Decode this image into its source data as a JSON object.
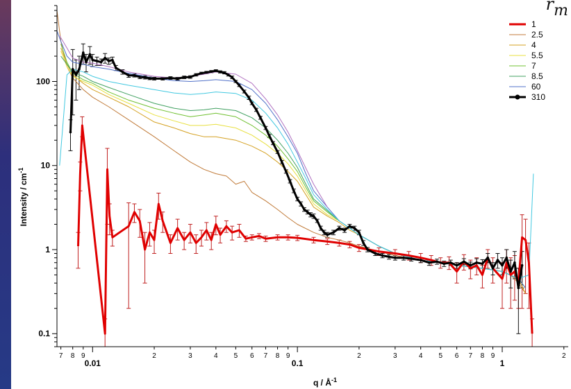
{
  "chart_data": {
    "type": "line",
    "title": "",
    "corner_label": {
      "main": "r",
      "sub": "m"
    },
    "xlabel": "q / Å",
    "xlabel_sup": "-1",
    "ylabel": "Intensity / cm",
    "ylabel_sup": "-1",
    "xscale": "log",
    "yscale": "log",
    "xlim": [
      0.0067,
      2.1
    ],
    "ylim": [
      0.07,
      800
    ],
    "grid": false,
    "legend_position": "top-right",
    "x_major_ticks": [
      {
        "value": 0.01,
        "label": "0.01"
      },
      {
        "value": 0.1,
        "label": "0.1"
      },
      {
        "value": 1,
        "label": "1"
      }
    ],
    "x_minor_ticks": [
      {
        "value": 0.007,
        "label": "7"
      },
      {
        "value": 0.008,
        "label": "8"
      },
      {
        "value": 0.009,
        "label": "9"
      },
      {
        "value": 0.02,
        "label": "2"
      },
      {
        "value": 0.03,
        "label": "3"
      },
      {
        "value": 0.04,
        "label": "4"
      },
      {
        "value": 0.05,
        "label": "5"
      },
      {
        "value": 0.06,
        "label": "6"
      },
      {
        "value": 0.07,
        "label": "7"
      },
      {
        "value": 0.08,
        "label": "8"
      },
      {
        "value": 0.09,
        "label": "9"
      },
      {
        "value": 0.2,
        "label": "2"
      },
      {
        "value": 0.3,
        "label": "3"
      },
      {
        "value": 0.4,
        "label": "4"
      },
      {
        "value": 0.5,
        "label": "5"
      },
      {
        "value": 0.6,
        "label": "6"
      },
      {
        "value": 0.7,
        "label": "7"
      },
      {
        "value": 0.8,
        "label": "8"
      },
      {
        "value": 0.9,
        "label": "9"
      },
      {
        "value": 2,
        "label": "2"
      }
    ],
    "y_major_ticks": [
      {
        "value": 0.1,
        "label": "0.1"
      },
      {
        "value": 1,
        "label": "1"
      },
      {
        "value": 10,
        "label": "10"
      },
      {
        "value": 100,
        "label": "100"
      }
    ],
    "series": [
      {
        "name": "1",
        "color": "#e00000",
        "width": 3,
        "marker": false,
        "errorbars": true,
        "x": [
          0.0085,
          0.0087,
          0.0089,
          0.0115,
          0.0118,
          0.0121,
          0.0125,
          0.015,
          0.016,
          0.017,
          0.018,
          0.019,
          0.02,
          0.021,
          0.022,
          0.024,
          0.026,
          0.028,
          0.03,
          0.032,
          0.034,
          0.036,
          0.038,
          0.04,
          0.042,
          0.045,
          0.048,
          0.052,
          0.056,
          0.06,
          0.065,
          0.07,
          0.08,
          0.09,
          0.1,
          0.12,
          0.14,
          0.16,
          0.18,
          0.2,
          0.25,
          0.3,
          0.35,
          0.4,
          0.45,
          0.5,
          0.55,
          0.6,
          0.65,
          0.7,
          0.75,
          0.8,
          0.85,
          0.9,
          1.0,
          1.05,
          1.1,
          1.15,
          1.2,
          1.25,
          1.3,
          1.35,
          1.4
        ],
        "y": [
          1.1,
          8,
          30,
          0.1,
          9,
          2.5,
          1.4,
          1.9,
          2.8,
          2.2,
          1.0,
          1.6,
          1.3,
          3.5,
          2.2,
          1.2,
          1.8,
          1.3,
          1.6,
          1.2,
          1.4,
          1.7,
          1.3,
          2.0,
          1.5,
          1.9,
          1.6,
          1.7,
          1.35,
          1.4,
          1.45,
          1.35,
          1.4,
          1.4,
          1.38,
          1.3,
          1.25,
          1.2,
          1.15,
          1.05,
          0.95,
          0.9,
          0.85,
          0.8,
          0.75,
          0.7,
          0.7,
          0.55,
          0.72,
          0.6,
          0.65,
          0.5,
          0.8,
          0.6,
          0.45,
          0.7,
          0.5,
          0.55,
          0.4,
          1.4,
          1.3,
          0.7,
          0.1
        ],
        "err": [
          0.5,
          3,
          8,
          0.05,
          7,
          1,
          0.3,
          1.7,
          0.7,
          0.8,
          0.6,
          0.5,
          0.4,
          1.2,
          0.6,
          0.3,
          0.5,
          0.3,
          0.4,
          0.3,
          0.3,
          0.4,
          0.3,
          0.5,
          0.3,
          0.3,
          0.3,
          0.3,
          0.1,
          0.1,
          0.1,
          0.1,
          0.1,
          0.1,
          0.1,
          0.1,
          0.1,
          0.1,
          0.1,
          0.1,
          0.1,
          0.1,
          0.1,
          0.1,
          0.1,
          0.1,
          0.12,
          0.15,
          0.15,
          0.15,
          0.15,
          0.15,
          0.2,
          0.2,
          0.25,
          0.3,
          0.3,
          0.3,
          0.2,
          1.2,
          1.0,
          0.5,
          0.05
        ]
      },
      {
        "name": "2.5",
        "color": "#c07a38",
        "width": 1,
        "marker": false,
        "errorbars": false,
        "x": [
          0.0067,
          0.007,
          0.0075,
          0.008,
          0.009,
          0.01,
          0.012,
          0.015,
          0.02,
          0.025,
          0.03,
          0.035,
          0.04,
          0.045,
          0.05,
          0.055,
          0.06,
          0.07,
          0.08,
          0.09,
          0.1,
          0.12,
          0.14,
          0.16,
          0.18,
          0.2,
          0.25,
          0.3,
          0.4,
          0.5,
          0.6,
          0.8,
          1.0,
          1.1,
          1.2,
          1.3
        ],
        "y": [
          700,
          300,
          150,
          110,
          80,
          65,
          50,
          35,
          22,
          15,
          11,
          9,
          8,
          7.5,
          6.0,
          6.5,
          4.8,
          3.8,
          3.0,
          2.4,
          2.0,
          1.6,
          1.4,
          1.3,
          1.2,
          1.1,
          0.95,
          0.85,
          0.75,
          0.7,
          0.65,
          0.6,
          0.55,
          0.5,
          0.4,
          0.3
        ]
      },
      {
        "name": "4",
        "color": "#d4a020",
        "width": 1,
        "marker": false,
        "errorbars": false,
        "x": [
          0.007,
          0.0075,
          0.008,
          0.009,
          0.01,
          0.012,
          0.015,
          0.02,
          0.025,
          0.03,
          0.035,
          0.04,
          0.05,
          0.06,
          0.07,
          0.08,
          0.09,
          0.1,
          0.11,
          0.12,
          0.14,
          0.16,
          0.18,
          0.2,
          0.25,
          0.3,
          0.4,
          0.5,
          0.6,
          0.8,
          1.0,
          1.2,
          1.3
        ],
        "y": [
          250,
          160,
          120,
          95,
          80,
          65,
          50,
          33,
          28,
          24,
          22,
          22,
          20,
          17,
          14,
          11,
          8.5,
          6.5,
          4.5,
          3.2,
          2.5,
          2.1,
          1.7,
          1.5,
          1.1,
          0.9,
          0.75,
          0.7,
          0.65,
          0.6,
          0.55,
          0.45,
          0.3
        ]
      },
      {
        "name": "5.5",
        "color": "#e8e040",
        "width": 1,
        "marker": false,
        "errorbars": false,
        "x": [
          0.007,
          0.0075,
          0.008,
          0.009,
          0.01,
          0.012,
          0.015,
          0.02,
          0.025,
          0.03,
          0.035,
          0.04,
          0.05,
          0.06,
          0.07,
          0.08,
          0.09,
          0.1,
          0.11,
          0.12,
          0.14,
          0.16,
          0.18,
          0.2,
          0.25,
          0.3,
          0.4,
          0.5,
          0.6,
          0.8,
          1.0,
          1.2,
          1.3
        ],
        "y": [
          230,
          150,
          115,
          100,
          90,
          70,
          55,
          40,
          34,
          30,
          30,
          31,
          28,
          23,
          18,
          14,
          10.5,
          7.5,
          5.0,
          3.5,
          2.6,
          2.2,
          1.8,
          1.5,
          1.1,
          0.9,
          0.75,
          0.7,
          0.65,
          0.6,
          0.55,
          0.45,
          0.35
        ]
      },
      {
        "name": "7",
        "color": "#70c030",
        "width": 1,
        "marker": false,
        "errorbars": false,
        "x": [
          0.007,
          0.0075,
          0.008,
          0.009,
          0.01,
          0.012,
          0.015,
          0.02,
          0.025,
          0.03,
          0.035,
          0.04,
          0.05,
          0.06,
          0.07,
          0.08,
          0.09,
          0.1,
          0.11,
          0.12,
          0.14,
          0.16,
          0.18,
          0.2,
          0.25,
          0.3,
          0.4,
          0.5,
          0.6,
          0.8,
          1.0,
          1.2,
          1.3
        ],
        "y": [
          280,
          170,
          125,
          105,
          95,
          75,
          60,
          48,
          42,
          38,
          40,
          42,
          38,
          30,
          23,
          17,
          12,
          8.5,
          5.5,
          3.8,
          2.8,
          2.2,
          1.8,
          1.5,
          1.1,
          0.9,
          0.75,
          0.7,
          0.65,
          0.6,
          0.55,
          0.45,
          0.35
        ]
      },
      {
        "name": "8.5",
        "color": "#40a060",
        "width": 1,
        "marker": false,
        "errorbars": false,
        "x": [
          0.007,
          0.0075,
          0.008,
          0.009,
          0.01,
          0.012,
          0.015,
          0.02,
          0.025,
          0.03,
          0.035,
          0.04,
          0.05,
          0.06,
          0.07,
          0.08,
          0.09,
          0.1,
          0.11,
          0.12,
          0.14,
          0.16,
          0.18,
          0.2,
          0.25,
          0.3,
          0.4,
          0.5,
          0.6,
          0.8,
          1.0,
          1.2,
          1.3
        ],
        "y": [
          200,
          160,
          130,
          115,
          100,
          85,
          70,
          55,
          48,
          45,
          46,
          48,
          45,
          37,
          28,
          20,
          14,
          9.5,
          6.0,
          4.0,
          2.9,
          2.2,
          1.8,
          1.5,
          1.1,
          0.9,
          0.75,
          0.7,
          0.65,
          0.6,
          0.55,
          0.45,
          0.35
        ]
      },
      {
        "name": "60",
        "color": "#5070c8",
        "width": 1,
        "marker": false,
        "errorbars": false,
        "x": [
          0.0067,
          0.007,
          0.0075,
          0.008,
          0.009,
          0.01,
          0.012,
          0.015,
          0.02,
          0.025,
          0.03,
          0.035,
          0.04,
          0.05,
          0.06,
          0.07,
          0.08,
          0.09,
          0.1,
          0.11,
          0.12,
          0.14,
          0.16,
          0.18,
          0.2,
          0.25,
          0.3,
          0.4,
          0.5,
          0.6,
          0.8,
          1.0,
          1.2,
          1.3
        ],
        "y": [
          400,
          300,
          200,
          170,
          160,
          150,
          140,
          125,
          110,
          102,
          100,
          102,
          105,
          100,
          80,
          55,
          35,
          22,
          14,
          8,
          5,
          3.2,
          2.2,
          1.8,
          1.5,
          1.1,
          0.9,
          0.75,
          0.7,
          0.65,
          0.6,
          0.55,
          0.45,
          0.35
        ]
      },
      {
        "name": "_cyan",
        "color": "#40c8e0",
        "width": 1,
        "marker": false,
        "errorbars": false,
        "x": [
          0.0069,
          0.0075,
          0.008,
          0.009,
          0.01,
          0.012,
          0.015,
          0.02,
          0.025,
          0.03,
          0.035,
          0.04,
          0.05,
          0.06,
          0.07,
          0.08,
          0.09,
          0.1,
          0.11,
          0.12,
          0.14,
          0.16,
          0.18,
          0.2,
          0.25,
          0.3,
          0.4,
          0.5,
          0.6,
          0.8,
          1.0,
          1.2,
          1.35,
          1.42
        ],
        "y": [
          10,
          120,
          140,
          130,
          115,
          100,
          90,
          80,
          73,
          70,
          72,
          75,
          72,
          60,
          42,
          28,
          18,
          11,
          7,
          4.5,
          3.0,
          2.2,
          1.8,
          1.5,
          1.1,
          0.9,
          0.75,
          0.7,
          0.65,
          0.6,
          0.55,
          0.45,
          0.5,
          8
        ]
      },
      {
        "name": "_purple",
        "color": "#b070c0",
        "width": 1,
        "marker": false,
        "errorbars": false,
        "x": [
          0.0069,
          0.0075,
          0.008,
          0.009,
          0.01,
          0.012,
          0.015,
          0.02,
          0.025,
          0.03,
          0.035,
          0.04,
          0.05,
          0.06,
          0.07,
          0.08,
          0.09,
          0.1,
          0.12,
          0.14
        ],
        "y": [
          350,
          250,
          190,
          170,
          165,
          150,
          130,
          115,
          110,
          115,
          122,
          130,
          122,
          95,
          62,
          40,
          25,
          15,
          6,
          3.2
        ]
      },
      {
        "name": "310",
        "color": "#000000",
        "width": 3,
        "marker": true,
        "errorbars": true,
        "x": [
          0.0078,
          0.008,
          0.0083,
          0.0086,
          0.009,
          0.0093,
          0.0097,
          0.01,
          0.0105,
          0.011,
          0.0115,
          0.012,
          0.0125,
          0.013,
          0.014,
          0.015,
          0.016,
          0.017,
          0.018,
          0.019,
          0.02,
          0.022,
          0.024,
          0.026,
          0.028,
          0.03,
          0.032,
          0.034,
          0.036,
          0.038,
          0.04,
          0.042,
          0.044,
          0.046,
          0.048,
          0.05,
          0.052,
          0.055,
          0.058,
          0.06,
          0.063,
          0.066,
          0.07,
          0.073,
          0.076,
          0.08,
          0.084,
          0.088,
          0.092,
          0.096,
          0.1,
          0.104,
          0.108,
          0.112,
          0.116,
          0.12,
          0.125,
          0.13,
          0.135,
          0.14,
          0.15,
          0.16,
          0.17,
          0.18,
          0.19,
          0.2,
          0.21,
          0.22,
          0.24,
          0.26,
          0.28,
          0.3,
          0.33,
          0.36,
          0.4,
          0.44,
          0.48,
          0.52,
          0.56,
          0.6,
          0.65,
          0.7,
          0.75,
          0.8,
          0.85,
          0.9,
          0.95,
          1.0,
          1.05,
          1.1,
          1.15,
          1.2,
          1.25
        ],
        "y": [
          25,
          140,
          120,
          140,
          220,
          170,
          210,
          180,
          175,
          170,
          190,
          175,
          180,
          145,
          130,
          118,
          118,
          113,
          112,
          109,
          108,
          108,
          110,
          108,
          112,
          113,
          120,
          125,
          128,
          131,
          134,
          130,
          127,
          120,
          112,
          100,
          90,
          76,
          64,
          55,
          46,
          37,
          28,
          22.5,
          18.5,
          14.5,
          11,
          8.5,
          6.5,
          5.0,
          4.0,
          3.5,
          3.0,
          2.8,
          2.6,
          2.5,
          2.2,
          1.8,
          1.6,
          1.5,
          1.6,
          1.8,
          1.7,
          1.9,
          1.8,
          1.6,
          1.2,
          1.0,
          0.9,
          0.85,
          0.82,
          0.8,
          0.8,
          0.78,
          0.75,
          0.7,
          0.72,
          0.68,
          0.7,
          0.65,
          0.72,
          0.65,
          0.7,
          0.68,
          0.8,
          0.6,
          0.75,
          0.65,
          0.8,
          0.55,
          0.7,
          0.35,
          0.65
        ],
        "err": [
          10,
          100,
          60,
          60,
          60,
          40,
          50,
          30,
          20,
          15,
          25,
          15,
          15,
          10,
          8,
          6,
          5,
          5,
          5,
          4,
          4,
          4,
          4,
          4,
          4,
          4,
          4,
          4,
          4,
          4,
          4,
          4,
          4,
          4,
          4,
          3,
          3,
          3,
          3,
          2,
          2,
          1.5,
          1.2,
          1,
          0.8,
          0.6,
          0.5,
          0.4,
          0.3,
          0.25,
          0.2,
          0.2,
          0.15,
          0.15,
          0.15,
          0.15,
          0.1,
          0.1,
          0.1,
          0.1,
          0.1,
          0.1,
          0.1,
          0.1,
          0.1,
          0.1,
          0.08,
          0.06,
          0.05,
          0.05,
          0.05,
          0.05,
          0.05,
          0.05,
          0.05,
          0.05,
          0.05,
          0.05,
          0.05,
          0.05,
          0.06,
          0.06,
          0.08,
          0.08,
          0.1,
          0.1,
          0.15,
          0.15,
          0.2,
          0.2,
          0.25,
          0.25,
          0.3
        ]
      }
    ]
  }
}
